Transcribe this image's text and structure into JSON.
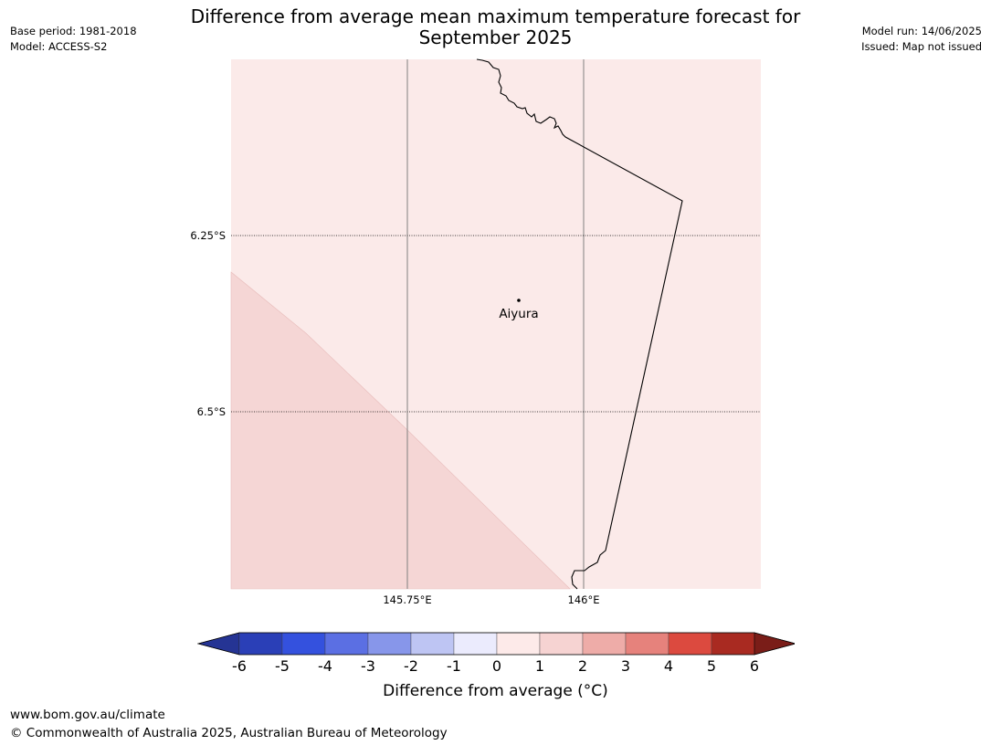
{
  "title_line1": "Difference from average mean maximum temperature forecast for",
  "title_line2": "September 2025",
  "meta_left": [
    "Base period: 1981-2018",
    "Model: ACCESS-S2"
  ],
  "meta_right": [
    "Model run: 14/06/2025",
    "Issued: Map not issued"
  ],
  "map": {
    "latitude_labels": [
      "6.25°S",
      "6.5°S"
    ],
    "longitude_labels": [
      "145.75°E",
      "146°E"
    ],
    "place": "Aiyura",
    "background_fill": "#fbeae9",
    "anomaly_fill": "#f5d6d5",
    "gridline_color": "#808080"
  },
  "colorbar": {
    "ticks": [
      "-6",
      "-5",
      "-4",
      "-3",
      "-2",
      "-1",
      "0",
      "1",
      "2",
      "3",
      "4",
      "5",
      "6"
    ],
    "colors": [
      "#253494",
      "#2a3fb7",
      "#3451de",
      "#5b6fe3",
      "#8796ea",
      "#bec5f3",
      "#ebebfd",
      "#fdeae9",
      "#f6d3d2",
      "#eeaca8",
      "#e6827c",
      "#dc4a3f",
      "#a92a21",
      "#7a1d18"
    ],
    "label": "Difference from average (°C)"
  },
  "footer": {
    "url": "www.bom.gov.au/climate",
    "copyright": "© Commonwealth of Australia 2025, Australian Bureau of Meteorology"
  }
}
